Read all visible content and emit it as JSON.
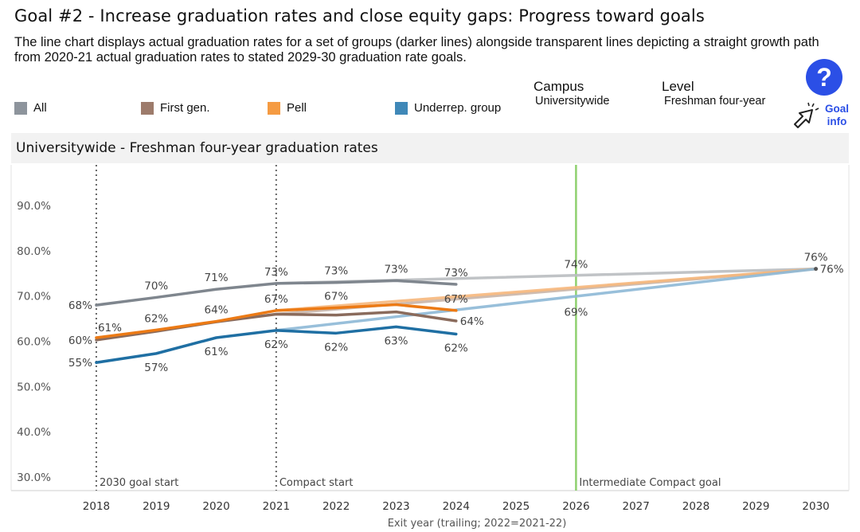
{
  "header": {
    "title": "Goal #2 - Increase graduation rates and close equity gaps: Progress toward goals",
    "description": "The line chart displays actual graduation rates for a set of groups (darker lines) alongside transparent lines depicting a straight growth path from 2020-21 actual graduation rates to stated 2029-30 graduation rate goals."
  },
  "legend": {
    "items": [
      {
        "label": "All",
        "color": "#8d949c"
      },
      {
        "label": "First gen.",
        "color": "#9d7b6b"
      },
      {
        "label": "Pell",
        "color": "#f59b42"
      },
      {
        "label": "Underrep. group",
        "color": "#3f88b8"
      }
    ]
  },
  "filters": {
    "campus_label": "Campus",
    "campus_value": "Universitywide",
    "level_label": "Level",
    "level_value": "Freshman four-year"
  },
  "help": {
    "icon_text": "?",
    "goal_info_line1": "Goal",
    "goal_info_line2": "info"
  },
  "chart_data": {
    "type": "line",
    "title": "Universitywide - Freshman four-year graduation rates",
    "xlabel": "Exit year (trailing; 2022=2021-22)",
    "ylabel": "",
    "x": [
      2018,
      2019,
      2020,
      2021,
      2022,
      2023,
      2024,
      2025,
      2026,
      2027,
      2028,
      2029,
      2030
    ],
    "xlim": [
      2017.35,
      2030.55
    ],
    "ylim": [
      27.0,
      99.0
    ],
    "yticks": [
      30,
      40,
      50,
      60,
      70,
      80,
      90
    ],
    "ytick_labels": [
      "30.0%",
      "40.0%",
      "50.0%",
      "60.0%",
      "70.0%",
      "80.0%",
      "90.0%"
    ],
    "series": [
      {
        "name": "All",
        "color": "#7f868e",
        "x": [
          2018,
          2019,
          2020,
          2021,
          2022,
          2023,
          2024
        ],
        "values": [
          68.0,
          69.7,
          71.5,
          72.8,
          73.0,
          73.4,
          72.6
        ]
      },
      {
        "name": "First gen.",
        "color": "#8a6b5c",
        "x": [
          2018,
          2019,
          2020,
          2021,
          2022,
          2023,
          2024
        ],
        "values": [
          60.3,
          62.2,
          64.3,
          66.0,
          65.8,
          66.5,
          64.5
        ]
      },
      {
        "name": "Pell",
        "color": "#ec7a15",
        "x": [
          2018,
          2019,
          2020,
          2021,
          2022,
          2023,
          2024
        ],
        "values": [
          60.8,
          62.5,
          64.4,
          66.8,
          67.4,
          68.1,
          66.8
        ]
      },
      {
        "name": "Underrep. group",
        "color": "#1f6fa3",
        "x": [
          2018,
          2019,
          2020,
          2021,
          2022,
          2023,
          2024
        ],
        "values": [
          55.3,
          57.3,
          60.8,
          62.4,
          61.8,
          63.2,
          61.6
        ]
      }
    ],
    "goal_paths": [
      {
        "name": "All",
        "color": "#b9bcc0",
        "x": [
          2021,
          2030
        ],
        "values": [
          72.8,
          76.0
        ]
      },
      {
        "name": "First gen.",
        "color": "#c9b5a9",
        "x": [
          2021,
          2030
        ],
        "values": [
          66.0,
          76.0
        ]
      },
      {
        "name": "Pell",
        "color": "#f6b77c",
        "x": [
          2021,
          2030
        ],
        "values": [
          66.8,
          76.0
        ]
      },
      {
        "name": "Underrep. group",
        "color": "#8db8d6",
        "x": [
          2021,
          2030
        ],
        "values": [
          62.4,
          76.0
        ]
      }
    ],
    "data_labels": [
      {
        "text": "68%",
        "x": 2018,
        "y": 68.0,
        "pos": "left"
      },
      {
        "text": "70%",
        "x": 2019,
        "y": 69.7,
        "pos": "above"
      },
      {
        "text": "71%",
        "x": 2020,
        "y": 71.5,
        "pos": "above"
      },
      {
        "text": "73%",
        "x": 2021,
        "y": 72.8,
        "pos": "above"
      },
      {
        "text": "73%",
        "x": 2022,
        "y": 73.0,
        "pos": "above"
      },
      {
        "text": "73%",
        "x": 2023,
        "y": 73.4,
        "pos": "above"
      },
      {
        "text": "73%",
        "x": 2024,
        "y": 72.6,
        "pos": "above"
      },
      {
        "text": "61%",
        "x": 2018,
        "y": 60.8,
        "pos": "above-right"
      },
      {
        "text": "60%",
        "x": 2018,
        "y": 60.3,
        "pos": "left"
      },
      {
        "text": "62%",
        "x": 2019,
        "y": 62.5,
        "pos": "above"
      },
      {
        "text": "64%",
        "x": 2020,
        "y": 64.4,
        "pos": "above"
      },
      {
        "text": "67%",
        "x": 2021,
        "y": 66.8,
        "pos": "above"
      },
      {
        "text": "67%",
        "x": 2022,
        "y": 67.4,
        "pos": "above"
      },
      {
        "text": "67%",
        "x": 2024,
        "y": 66.8,
        "pos": "above"
      },
      {
        "text": "64%",
        "x": 2024,
        "y": 64.5,
        "pos": "right"
      },
      {
        "text": "55%",
        "x": 2018,
        "y": 55.3,
        "pos": "left"
      },
      {
        "text": "57%",
        "x": 2019,
        "y": 57.3,
        "pos": "below"
      },
      {
        "text": "61%",
        "x": 2020,
        "y": 60.8,
        "pos": "below"
      },
      {
        "text": "62%",
        "x": 2021,
        "y": 62.4,
        "pos": "below"
      },
      {
        "text": "62%",
        "x": 2022,
        "y": 61.8,
        "pos": "below"
      },
      {
        "text": "63%",
        "x": 2023,
        "y": 63.2,
        "pos": "below"
      },
      {
        "text": "62%",
        "x": 2024,
        "y": 61.6,
        "pos": "below"
      },
      {
        "text": "74%",
        "x": 2026,
        "y": 74.4,
        "pos": "above"
      },
      {
        "text": "69%",
        "x": 2026,
        "y": 69.5,
        "pos": "below"
      },
      {
        "text": "76%",
        "x": 2030,
        "y": 76.0,
        "pos": "above"
      },
      {
        "text": "76%",
        "x": 2030,
        "y": 76.0,
        "pos": "right"
      }
    ],
    "reference_lines": [
      {
        "x": 2018,
        "label": "2030 goal start",
        "style": "dotted",
        "color": "#666666"
      },
      {
        "x": 2021,
        "label": "Compact start",
        "style": "dotted",
        "color": "#666666"
      },
      {
        "x": 2026,
        "label": "Intermediate Compact goal",
        "style": "solid",
        "color": "#8fd16f"
      }
    ],
    "grid": false
  }
}
